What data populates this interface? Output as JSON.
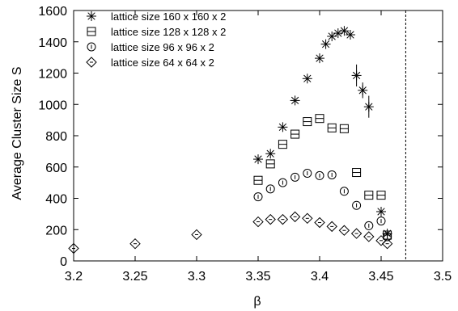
{
  "chart_data": {
    "type": "scatter",
    "title": "",
    "xlabel": "β",
    "ylabel": "Average Cluster Size S",
    "xlim": [
      3.2,
      3.5
    ],
    "ylim": [
      0,
      1600
    ],
    "xticks": [
      3.2,
      3.25,
      3.3,
      3.35,
      3.4,
      3.45,
      3.5
    ],
    "yticks": [
      0,
      200,
      400,
      600,
      800,
      1000,
      1200,
      1400,
      1600
    ],
    "xtick_labels": [
      "3.2",
      "3.25",
      "3.3",
      "3.35",
      "3.4",
      "3.45",
      "3.5"
    ],
    "ytick_labels": [
      "0",
      "200",
      "400",
      "600",
      "800",
      "1000",
      "1200",
      "1400",
      "1600"
    ],
    "grid": false,
    "legend_position": "top-left",
    "vertical_reference_line": {
      "x": 3.47,
      "style": "dashed"
    },
    "series": [
      {
        "name": "lattice size 160 x 160 x 2",
        "marker": "star",
        "points": [
          {
            "x": 3.35,
            "y": 650
          },
          {
            "x": 3.36,
            "y": 685
          },
          {
            "x": 3.37,
            "y": 855
          },
          {
            "x": 3.38,
            "y": 1025
          },
          {
            "x": 3.39,
            "y": 1165
          },
          {
            "x": 3.4,
            "y": 1295
          },
          {
            "x": 3.405,
            "y": 1385
          },
          {
            "x": 3.41,
            "y": 1435
          },
          {
            "x": 3.415,
            "y": 1455
          },
          {
            "x": 3.42,
            "y": 1470
          },
          {
            "x": 3.425,
            "y": 1445
          },
          {
            "x": 3.43,
            "y": 1185,
            "err": 70
          },
          {
            "x": 3.435,
            "y": 1090,
            "err": 50
          },
          {
            "x": 3.44,
            "y": 985,
            "err": 70
          },
          {
            "x": 3.45,
            "y": 315
          },
          {
            "x": 3.455,
            "y": 175
          }
        ]
      },
      {
        "name": "lattice size 128 x 128 x 2",
        "marker": "boxed-square",
        "points": [
          {
            "x": 3.35,
            "y": 515
          },
          {
            "x": 3.36,
            "y": 620
          },
          {
            "x": 3.37,
            "y": 745
          },
          {
            "x": 3.38,
            "y": 810
          },
          {
            "x": 3.39,
            "y": 890
          },
          {
            "x": 3.4,
            "y": 910
          },
          {
            "x": 3.41,
            "y": 850
          },
          {
            "x": 3.42,
            "y": 845
          },
          {
            "x": 3.43,
            "y": 565
          },
          {
            "x": 3.44,
            "y": 420
          },
          {
            "x": 3.45,
            "y": 420
          },
          {
            "x": 3.455,
            "y": 165
          }
        ]
      },
      {
        "name": "lattice size 96 x 96 x 2",
        "marker": "circle-dash",
        "points": [
          {
            "x": 3.35,
            "y": 410
          },
          {
            "x": 3.36,
            "y": 460
          },
          {
            "x": 3.37,
            "y": 500
          },
          {
            "x": 3.38,
            "y": 535
          },
          {
            "x": 3.39,
            "y": 560
          },
          {
            "x": 3.4,
            "y": 545
          },
          {
            "x": 3.41,
            "y": 550
          },
          {
            "x": 3.42,
            "y": 445
          },
          {
            "x": 3.43,
            "y": 355
          },
          {
            "x": 3.44,
            "y": 225
          },
          {
            "x": 3.45,
            "y": 255
          },
          {
            "x": 3.455,
            "y": 155
          }
        ]
      },
      {
        "name": "lattice size 64 x 64 x 2",
        "marker": "diamond",
        "points": [
          {
            "x": 3.2,
            "y": 80
          },
          {
            "x": 3.25,
            "y": 110
          },
          {
            "x": 3.3,
            "y": 168
          },
          {
            "x": 3.35,
            "y": 250
          },
          {
            "x": 3.36,
            "y": 265
          },
          {
            "x": 3.37,
            "y": 265
          },
          {
            "x": 3.38,
            "y": 282
          },
          {
            "x": 3.39,
            "y": 272
          },
          {
            "x": 3.4,
            "y": 245
          },
          {
            "x": 3.41,
            "y": 220
          },
          {
            "x": 3.42,
            "y": 195
          },
          {
            "x": 3.43,
            "y": 175
          },
          {
            "x": 3.44,
            "y": 155
          },
          {
            "x": 3.45,
            "y": 130
          },
          {
            "x": 3.455,
            "y": 110
          }
        ]
      }
    ]
  }
}
